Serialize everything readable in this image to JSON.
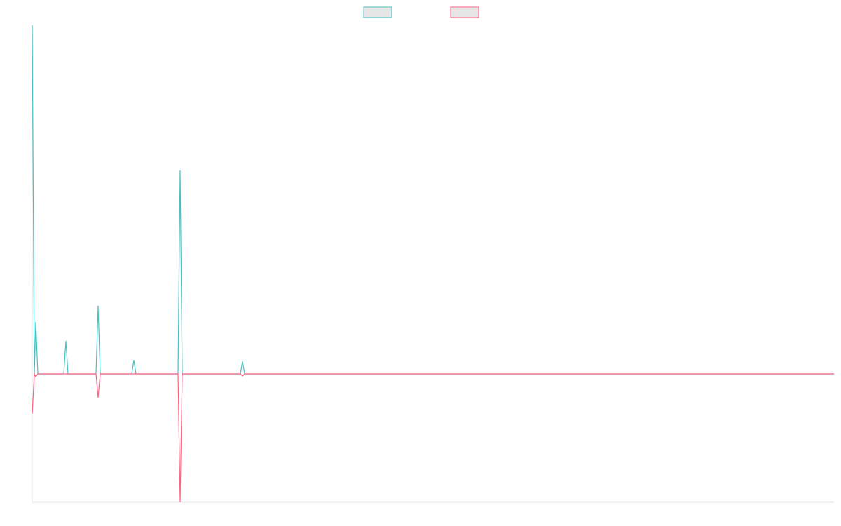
{
  "chart_data": {
    "type": "line",
    "x": [
      0,
      3,
      5,
      8,
      45,
      48,
      51,
      91,
      94,
      97,
      142,
      145,
      148,
      208,
      211,
      214,
      297,
      300,
      303,
      1144
    ],
    "series": [
      {
        "color": "#4bc0c0",
        "values": [
          497,
          0,
          74,
          0,
          0,
          47,
          0,
          0,
          97,
          0,
          0,
          19,
          0,
          0,
          290,
          0,
          0,
          18,
          0,
          0
        ]
      },
      {
        "color": "#ff6384",
        "values": [
          -57,
          0,
          -4,
          0,
          0,
          0,
          0,
          0,
          -34,
          0,
          0,
          0,
          0,
          0,
          -183,
          0,
          0,
          -3,
          0,
          0
        ]
      }
    ],
    "xlim": [
      0,
      1144
    ],
    "ylim": [
      -183,
      497
    ],
    "legend": "top"
  }
}
